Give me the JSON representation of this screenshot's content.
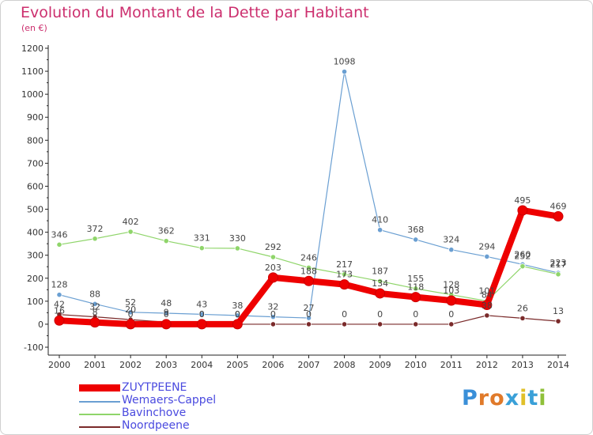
{
  "title": "Evolution du Montant de la Dette par Habitant",
  "subtitle": "(en €)",
  "logo": "Proxiti",
  "colors": {
    "title": "#cc2f6e",
    "legend_text": "#4a4adf"
  },
  "chart_data": {
    "type": "line",
    "x": [
      "2000",
      "2001",
      "2002",
      "2003",
      "2004",
      "2005",
      "2006",
      "2007",
      "2008",
      "2009",
      "2010",
      "2011",
      "2012",
      "2013",
      "2014"
    ],
    "ylim": [
      -100,
      1200
    ],
    "yticks": [
      -100,
      0,
      100,
      200,
      300,
      400,
      500,
      600,
      700,
      800,
      900,
      1000,
      1100,
      1200
    ],
    "grid": false,
    "legend_position": "bottom-left",
    "series": [
      {
        "name": "ZUYTPEENE",
        "color": "#ee0000",
        "width": 8,
        "values": [
          16,
          8,
          0,
          0,
          0,
          0,
          203,
          188,
          173,
          134,
          118,
          103,
          84,
          495,
          469
        ],
        "labels": [
          "16",
          "8",
          "0",
          "0",
          "0",
          "0",
          "203",
          "188",
          "173",
          "134",
          "118",
          "103",
          "84",
          "495",
          "469"
        ]
      },
      {
        "name": "Wemaers-Cappel",
        "color": "#6a9fd2",
        "width": 1.2,
        "values": [
          128,
          88,
          52,
          48,
          43,
          38,
          32,
          27,
          1098,
          410,
          368,
          324,
          294,
          260,
          223
        ],
        "labels": [
          "128",
          "88",
          "52",
          "48",
          "43",
          "38",
          "32",
          "27",
          "1098",
          "410",
          "368",
          "324",
          "294",
          "260",
          "223"
        ]
      },
      {
        "name": "Bavinchove",
        "color": "#8fd56a",
        "width": 1.2,
        "values": [
          346,
          372,
          402,
          362,
          331,
          330,
          292,
          246,
          217,
          187,
          155,
          128,
          101,
          252,
          217
        ],
        "labels": [
          "346",
          "372",
          "402",
          "362",
          "331",
          "330",
          "292",
          "246",
          "217",
          "187",
          "155",
          "128",
          "101",
          "252",
          "217"
        ]
      },
      {
        "name": "Noordpeene",
        "color": "#7a2a2a",
        "width": 1.2,
        "values": [
          42,
          32,
          20,
          9,
          0,
          0,
          0,
          0,
          0,
          0,
          0,
          0,
          38,
          26,
          13
        ],
        "labels": [
          "42",
          "32",
          "20",
          "9",
          "0",
          "0",
          "0",
          "0",
          "0",
          "0",
          "0",
          "0",
          "38",
          "26",
          "13"
        ]
      }
    ]
  }
}
